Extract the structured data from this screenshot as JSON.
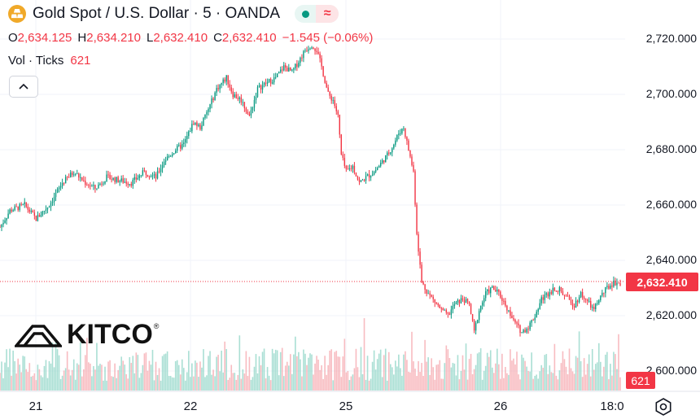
{
  "header": {
    "title": "Gold Spot / U.S. Dollar · 5 · OANDA",
    "pill_icon_right": "≈"
  },
  "ohlc": {
    "open_label": "O",
    "open": "2,634.125",
    "high_label": "H",
    "high": "2,634.210",
    "low_label": "L",
    "low": "2,632.410",
    "close_label": "C",
    "close": "2,632.410",
    "change": "−1.545 (−0.06%)"
  },
  "volume": {
    "label": "Vol · Ticks",
    "value": "621"
  },
  "price_axis": {
    "ticks": [
      "2,720.000",
      "2,700.000",
      "2,680.000",
      "2,660.000",
      "2,640.000",
      "2,620.000",
      "2,600.000"
    ],
    "current_price": "2,632.410",
    "volume_badge": "621"
  },
  "time_axis": {
    "ticks": [
      "21",
      "22",
      "25",
      "26",
      "18:0"
    ]
  },
  "watermark": {
    "brand": "KITCO",
    "reg": "®"
  },
  "colors": {
    "up": "#089981",
    "down": "#f23645",
    "accent": "#f0a929"
  },
  "chart_data": {
    "type": "candlestick",
    "ylim": [
      2598,
      2728
    ],
    "price_keypoints": [
      [
        0,
        2652
      ],
      [
        6,
        2658
      ],
      [
        15,
        2660
      ],
      [
        22,
        2655
      ],
      [
        30,
        2660
      ],
      [
        38,
        2668
      ],
      [
        45,
        2672
      ],
      [
        52,
        2668
      ],
      [
        58,
        2666
      ],
      [
        65,
        2670
      ],
      [
        72,
        2669
      ],
      [
        80,
        2668
      ],
      [
        88,
        2672
      ],
      [
        95,
        2670
      ],
      [
        100,
        2676
      ],
      [
        107,
        2680
      ],
      [
        112,
        2682
      ],
      [
        118,
        2690
      ],
      [
        122,
        2688
      ],
      [
        128,
        2696
      ],
      [
        132,
        2702
      ],
      [
        138,
        2706
      ],
      [
        142,
        2700
      ],
      [
        147,
        2698
      ],
      [
        152,
        2692
      ],
      [
        157,
        2702
      ],
      [
        162,
        2704
      ],
      [
        168,
        2706
      ],
      [
        173,
        2710
      ],
      [
        178,
        2708
      ],
      [
        182,
        2712
      ],
      [
        186,
        2716
      ],
      [
        190,
        2718
      ],
      [
        193,
        2716
      ],
      [
        196,
        2710
      ],
      [
        200,
        2700
      ],
      [
        203,
        2698
      ],
      [
        206,
        2692
      ],
      [
        208,
        2678
      ],
      [
        211,
        2672
      ],
      [
        215,
        2674
      ],
      [
        219,
        2668
      ],
      [
        223,
        2670
      ],
      [
        228,
        2672
      ],
      [
        232,
        2675
      ],
      [
        236,
        2678
      ],
      [
        240,
        2682
      ],
      [
        243,
        2686
      ],
      [
        246,
        2688
      ],
      [
        249,
        2680
      ],
      [
        252,
        2672
      ],
      [
        254,
        2650
      ],
      [
        257,
        2632
      ],
      [
        261,
        2628
      ],
      [
        265,
        2625
      ],
      [
        269,
        2622
      ],
      [
        273,
        2620
      ],
      [
        277,
        2624
      ],
      [
        282,
        2626
      ],
      [
        286,
        2624
      ],
      [
        289,
        2614
      ],
      [
        292,
        2622
      ],
      [
        296,
        2628
      ],
      [
        300,
        2630
      ],
      [
        304,
        2628
      ],
      [
        308,
        2624
      ],
      [
        313,
        2618
      ],
      [
        318,
        2614
      ],
      [
        322,
        2616
      ],
      [
        326,
        2620
      ],
      [
        330,
        2626
      ],
      [
        334,
        2628
      ],
      [
        338,
        2630
      ],
      [
        342,
        2629
      ],
      [
        346,
        2626
      ],
      [
        350,
        2624
      ],
      [
        354,
        2628
      ],
      [
        358,
        2625
      ],
      [
        362,
        2622
      ],
      [
        366,
        2627
      ],
      [
        370,
        2630
      ],
      [
        374,
        2632
      ],
      [
        378,
        2632
      ]
    ]
  }
}
